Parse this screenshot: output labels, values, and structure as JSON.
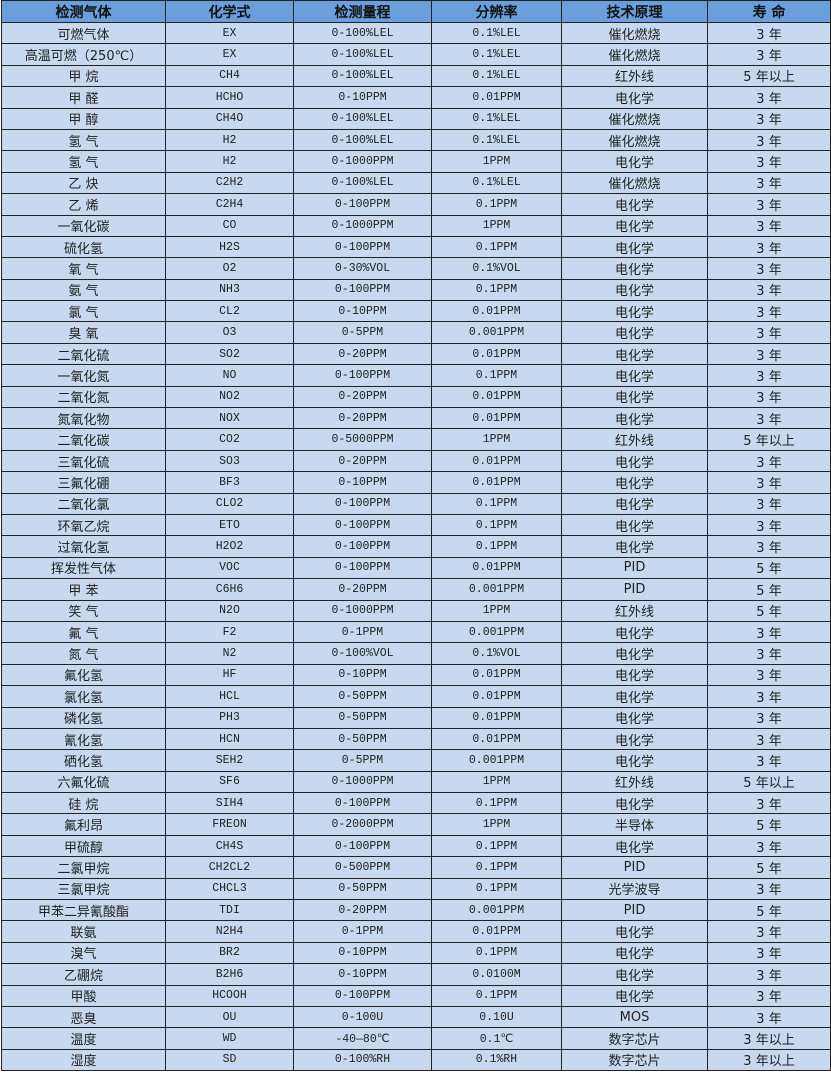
{
  "table": {
    "headers": [
      "检测气体",
      "化学式",
      "检测量程",
      "分辨率",
      "技术原理",
      "寿 命"
    ],
    "rows": [
      [
        "可燃气体",
        "EX",
        "0-100%LEL",
        "0.1%LEL",
        "催化燃烧",
        "3 年"
      ],
      [
        "高温可燃（250℃）",
        "EX",
        "0-100%LEL",
        "0.1%LEL",
        "催化燃烧",
        "3 年"
      ],
      [
        "甲 烷",
        "CH4",
        "0-100%LEL",
        "0.1%LEL",
        "红外线",
        "5 年以上"
      ],
      [
        "甲 醛",
        "HCHO",
        "0-10PPM",
        "0.01PPM",
        "电化学",
        "3 年"
      ],
      [
        "甲 醇",
        "CH4O",
        "0-100%LEL",
        "0.1%LEL",
        "催化燃烧",
        "3 年"
      ],
      [
        "氢 气",
        "H2",
        "0-100%LEL",
        "0.1%LEL",
        "催化燃烧",
        "3 年"
      ],
      [
        "氢 气",
        "H2",
        "0-1000PPM",
        "1PPM",
        "电化学",
        "3 年"
      ],
      [
        "乙 炔",
        "C2H2",
        "0-100%LEL",
        "0.1%LEL",
        "催化燃烧",
        "3 年"
      ],
      [
        "乙 烯",
        "C2H4",
        "0-100PPM",
        "0.1PPM",
        "电化学",
        "3 年"
      ],
      [
        "一氧化碳",
        "CO",
        "0-1000PPM",
        "1PPM",
        "电化学",
        "3 年"
      ],
      [
        "硫化氢",
        "H2S",
        "0-100PPM",
        "0.1PPM",
        "电化学",
        "3 年"
      ],
      [
        "氧 气",
        "O2",
        "0-30%VOL",
        "0.1%VOL",
        "电化学",
        "3 年"
      ],
      [
        "氨 气",
        "NH3",
        "0-100PPM",
        "0.1PPM",
        "电化学",
        "3 年"
      ],
      [
        "氯 气",
        "CL2",
        "0-10PPM",
        "0.01PPM",
        "电化学",
        "3 年"
      ],
      [
        "臭 氧",
        "O3",
        "0-5PPM",
        "0.001PPM",
        "电化学",
        "3 年"
      ],
      [
        "二氧化硫",
        "SO2",
        "0-20PPM",
        "0.01PPM",
        "电化学",
        "3 年"
      ],
      [
        "一氧化氮",
        "NO",
        "0-100PPM",
        "0.1PPM",
        "电化学",
        "3 年"
      ],
      [
        "二氧化氮",
        "NO2",
        "0-20PPM",
        "0.01PPM",
        "电化学",
        "3 年"
      ],
      [
        "氮氧化物",
        "NOX",
        "0-20PPM",
        "0.01PPM",
        "电化学",
        "3 年"
      ],
      [
        "二氧化碳",
        "CO2",
        "0-5000PPM",
        "1PPM",
        "红外线",
        "5 年以上"
      ],
      [
        "三氧化硫",
        "SO3",
        "0-20PPM",
        "0.01PPM",
        "电化学",
        "3 年"
      ],
      [
        "三氟化硼",
        "BF3",
        "0-10PPM",
        "0.01PPM",
        "电化学",
        "3 年"
      ],
      [
        "二氧化氯",
        "CLO2",
        "0-100PPM",
        "0.1PPM",
        "电化学",
        "3 年"
      ],
      [
        "环氧乙烷",
        "ETO",
        "0-100PPM",
        "0.1PPM",
        "电化学",
        "3 年"
      ],
      [
        "过氧化氢",
        "H2O2",
        "0-100PPM",
        "0.1PPM",
        "电化学",
        "3 年"
      ],
      [
        "挥发性气体",
        "VOC",
        "0-100PPM",
        "0.01PPM",
        "PID",
        "5 年"
      ],
      [
        "甲 苯",
        "C6H6",
        "0-20PPM",
        "0.001PPM",
        "PID",
        "5 年"
      ],
      [
        "笑 气",
        "N2O",
        "0-1000PPM",
        "1PPM",
        "红外线",
        "5 年"
      ],
      [
        "氟 气",
        "F2",
        "0-1PPM",
        "0.001PPM",
        "电化学",
        "3 年"
      ],
      [
        "氮 气",
        "N2",
        "0-100%VOL",
        "0.1%VOL",
        "电化学",
        "3 年"
      ],
      [
        "氟化氢",
        "HF",
        "0-10PPM",
        "0.01PPM",
        "电化学",
        "3 年"
      ],
      [
        "氯化氢",
        "HCL",
        "0-50PPM",
        "0.01PPM",
        "电化学",
        "3 年"
      ],
      [
        "磷化氢",
        "PH3",
        "0-50PPM",
        "0.01PPM",
        "电化学",
        "3 年"
      ],
      [
        "氰化氢",
        "HCN",
        "0-50PPM",
        "0.01PPM",
        "电化学",
        "3 年"
      ],
      [
        "硒化氢",
        "SEH2",
        "0-5PPM",
        "0.001PPM",
        "电化学",
        "3 年"
      ],
      [
        "六氟化硫",
        "SF6",
        "0-1000PPM",
        "1PPM",
        "红外线",
        "5 年以上"
      ],
      [
        "硅 烷",
        "SIH4",
        "0-100PPM",
        "0.1PPM",
        "电化学",
        "3 年"
      ],
      [
        "氟利昂",
        "FREON",
        "0-2000PPM",
        "1PPM",
        "半导体",
        "5 年"
      ],
      [
        "甲硫醇",
        "CH4S",
        "0-100PPM",
        "0.1PPM",
        "电化学",
        "3 年"
      ],
      [
        "二氯甲烷",
        "CH2CL2",
        "0-500PPM",
        "0.1PPM",
        "PID",
        "5 年"
      ],
      [
        "三氯甲烷",
        "CHCL3",
        "0-50PPM",
        "0.1PPM",
        "光学波导",
        "3 年"
      ],
      [
        "甲苯二异氰酸酯",
        "TDI",
        "0-20PPM",
        "0.001PPM",
        "PID",
        "5 年"
      ],
      [
        "联氨",
        "N2H4",
        "0-1PPM",
        "0.01PPM",
        "电化学",
        "3 年"
      ],
      [
        "溴气",
        "BR2",
        "0-10PPM",
        "0.1PPM",
        "电化学",
        "3 年"
      ],
      [
        "乙硼烷",
        "B2H6",
        "0-10PPM",
        "0.0100M",
        "电化学",
        "3 年"
      ],
      [
        "甲酸",
        "HCOOH",
        "0-100PPM",
        "0.1PPM",
        "电化学",
        "3 年"
      ],
      [
        "恶臭",
        "OU",
        "0-100U",
        "0.10U",
        "MOS",
        "3 年"
      ],
      [
        "温度",
        "WD",
        "-40—80℃",
        "0.1℃",
        "数字芯片",
        "3 年以上"
      ],
      [
        "湿度",
        "SD",
        "0-100%RH",
        "0.1%RH",
        "数字芯片",
        "3 年以上"
      ]
    ]
  },
  "colors": {
    "header_bg": "#6a9fdc",
    "row_bg": "#c6d9f0",
    "border": "#222222"
  }
}
